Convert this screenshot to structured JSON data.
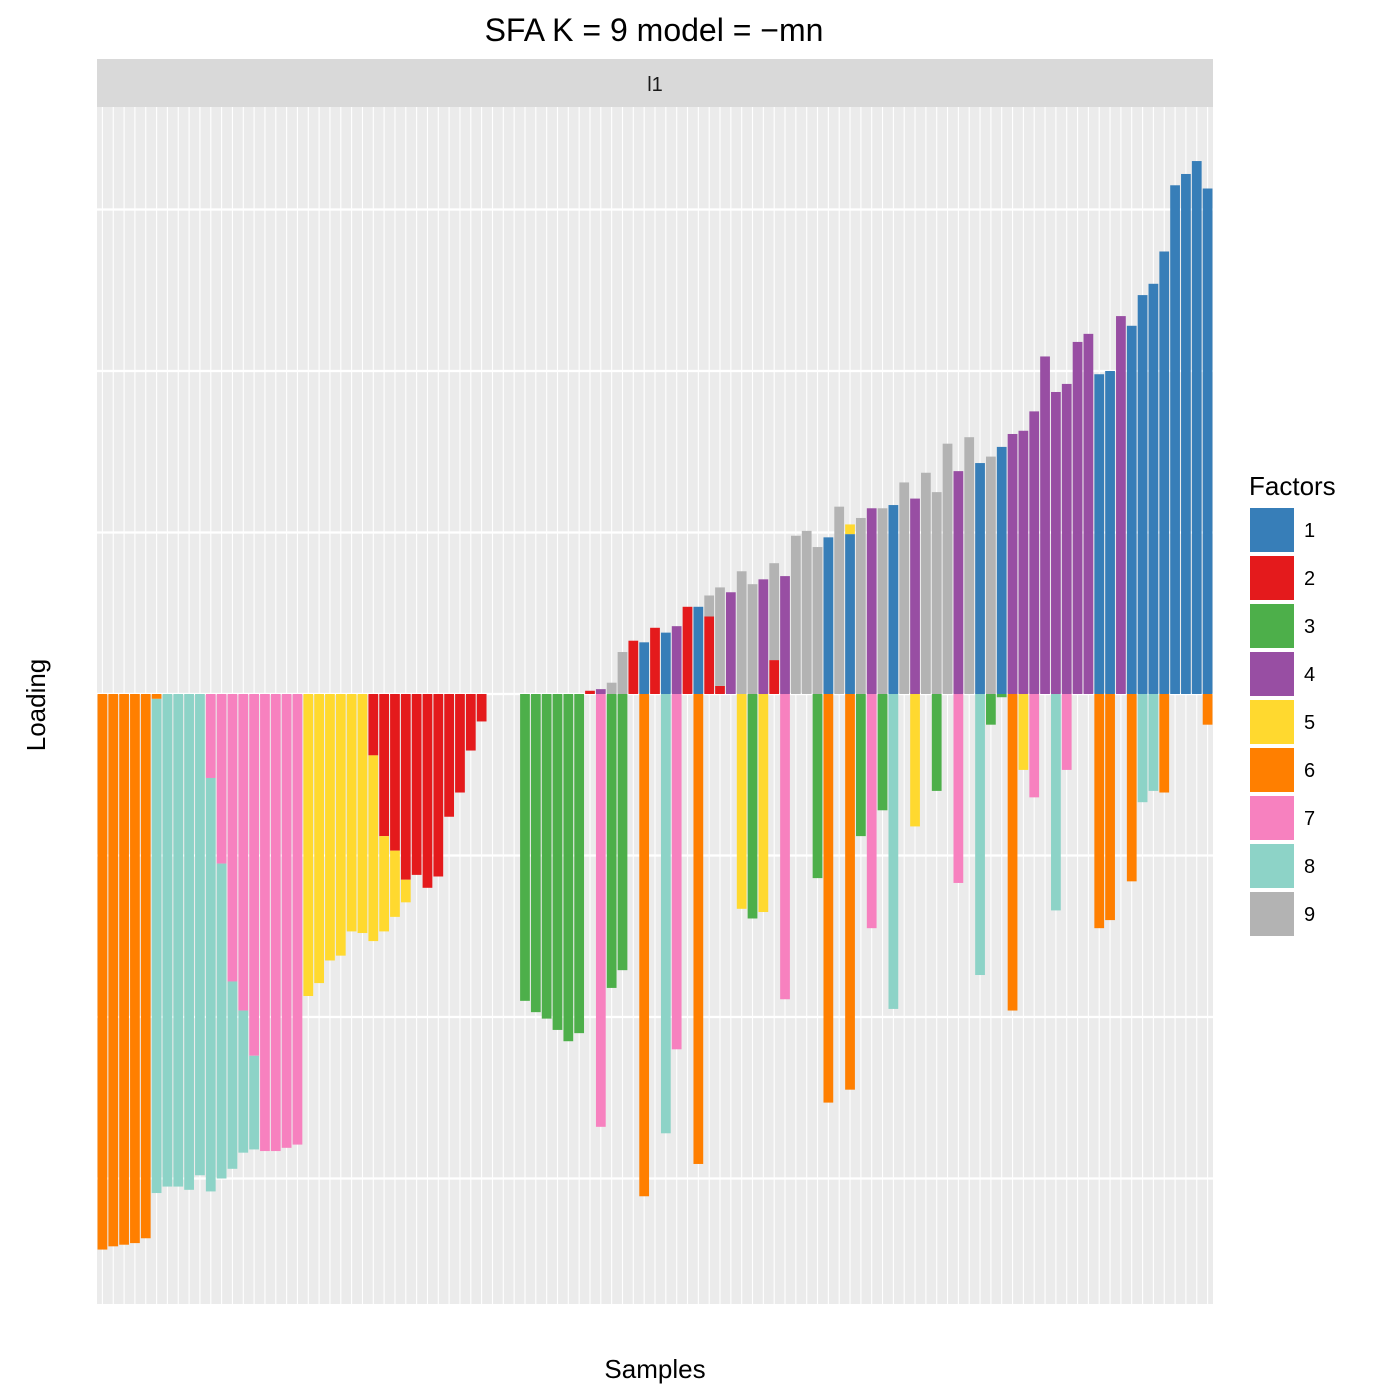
{
  "chart_data": {
    "type": "bar",
    "stacked": true,
    "title": "SFA K = 9 model =  −mn",
    "xlabel": "Samples",
    "ylabel": "Loading",
    "facet": "l1",
    "grid": true,
    "legend": {
      "title": "Factors",
      "placement": "right"
    },
    "ylim": [
      -3.8,
      3.5
    ],
    "factors": [
      {
        "name": "1",
        "color": "#377EB8"
      },
      {
        "name": "2",
        "color": "#E41A1C"
      },
      {
        "name": "3",
        "color": "#4DAF4A"
      },
      {
        "name": "4",
        "color": "#984EA3"
      },
      {
        "name": "5",
        "color": "#FFD92F"
      },
      {
        "name": "6",
        "color": "#FF7F00"
      },
      {
        "name": "7",
        "color": "#F781BF"
      },
      {
        "name": "8",
        "color": "#8DD3C7"
      },
      {
        "name": "9",
        "color": "#B3B3B3"
      }
    ],
    "samples": [
      [
        {
          "f": "6",
          "v": -3.44
        }
      ],
      [
        {
          "f": "6",
          "v": -3.42
        }
      ],
      [
        {
          "f": "6",
          "v": -3.41
        }
      ],
      [
        {
          "f": "6",
          "v": -3.4
        }
      ],
      [
        {
          "f": "6",
          "v": -3.37
        }
      ],
      [
        {
          "f": "6",
          "v": -0.03
        },
        {
          "f": "8",
          "v": -3.06
        }
      ],
      [
        {
          "f": "8",
          "v": -3.05
        }
      ],
      [
        {
          "f": "8",
          "v": -3.05
        }
      ],
      [
        {
          "f": "8",
          "v": -3.07
        }
      ],
      [
        {
          "f": "8",
          "v": -2.98
        }
      ],
      [
        {
          "f": "7",
          "v": -0.52
        },
        {
          "f": "8",
          "v": -2.56
        }
      ],
      [
        {
          "f": "7",
          "v": -1.05
        },
        {
          "f": "8",
          "v": -1.95
        }
      ],
      [
        {
          "f": "7",
          "v": -1.78
        },
        {
          "f": "8",
          "v": -1.16
        }
      ],
      [
        {
          "f": "7",
          "v": -1.96
        },
        {
          "f": "8",
          "v": -0.88
        }
      ],
      [
        {
          "f": "7",
          "v": -2.24
        },
        {
          "f": "8",
          "v": -0.58
        }
      ],
      [
        {
          "f": "7",
          "v": -2.83
        }
      ],
      [
        {
          "f": "7",
          "v": -2.83
        }
      ],
      [
        {
          "f": "7",
          "v": -2.81
        }
      ],
      [
        {
          "f": "7",
          "v": -2.79
        }
      ],
      [
        {
          "f": "5",
          "v": -1.87
        }
      ],
      [
        {
          "f": "5",
          "v": -1.79
        }
      ],
      [
        {
          "f": "5",
          "v": -1.65
        }
      ],
      [
        {
          "f": "5",
          "v": -1.62
        }
      ],
      [
        {
          "f": "5",
          "v": -1.47
        }
      ],
      [
        {
          "f": "5",
          "v": -1.48
        }
      ],
      [
        {
          "f": "2",
          "v": -0.38
        },
        {
          "f": "5",
          "v": -1.15
        }
      ],
      [
        {
          "f": "2",
          "v": -0.88
        },
        {
          "f": "5",
          "v": -0.59
        }
      ],
      [
        {
          "f": "2",
          "v": -0.97
        },
        {
          "f": "5",
          "v": -0.41
        }
      ],
      [
        {
          "f": "2",
          "v": -1.15
        },
        {
          "f": "5",
          "v": -0.14
        }
      ],
      [
        {
          "f": "2",
          "v": -1.12
        }
      ],
      [
        {
          "f": "2",
          "v": -1.2
        }
      ],
      [
        {
          "f": "2",
          "v": -1.13
        }
      ],
      [
        {
          "f": "2",
          "v": -0.76
        }
      ],
      [
        {
          "f": "2",
          "v": -0.61
        }
      ],
      [
        {
          "f": "2",
          "v": -0.35
        }
      ],
      [
        {
          "f": "2",
          "v": -0.17
        }
      ],
      [],
      [],
      [],
      [
        {
          "f": "3",
          "v": -1.9
        }
      ],
      [
        {
          "f": "3",
          "v": -1.97
        }
      ],
      [
        {
          "f": "3",
          "v": -2.01
        }
      ],
      [
        {
          "f": "3",
          "v": -2.08
        }
      ],
      [
        {
          "f": "3",
          "v": -2.15
        }
      ],
      [
        {
          "f": "3",
          "v": -2.1
        }
      ],
      [
        {
          "f": "2",
          "v": 0.02
        }
      ],
      [
        {
          "f": "4",
          "v": 0.03
        },
        {
          "f": "7",
          "v": -2.68
        }
      ],
      [
        {
          "f": "9",
          "v": 0.07
        },
        {
          "f": "3",
          "v": -1.82
        }
      ],
      [
        {
          "f": "9",
          "v": 0.26
        },
        {
          "f": "3",
          "v": -1.71
        }
      ],
      [
        {
          "f": "2",
          "v": 0.33
        }
      ],
      [
        {
          "f": "1",
          "v": 0.32
        },
        {
          "f": "6",
          "v": -3.11
        }
      ],
      [
        {
          "f": "2",
          "v": 0.41
        }
      ],
      [
        {
          "f": "1",
          "v": 0.38
        },
        {
          "f": "8",
          "v": -2.72
        }
      ],
      [
        {
          "f": "4",
          "v": 0.42
        },
        {
          "f": "7",
          "v": -2.2
        }
      ],
      [
        {
          "f": "2",
          "v": 0.54
        }
      ],
      [
        {
          "f": "1",
          "v": 0.54
        },
        {
          "f": "6",
          "v": -2.91
        }
      ],
      [
        {
          "f": "2",
          "v": 0.48
        },
        {
          "f": "9",
          "v": 0.13
        }
      ],
      [
        {
          "f": "2",
          "v": 0.05
        },
        {
          "f": "9",
          "v": 0.61
        }
      ],
      [
        {
          "f": "4",
          "v": 0.63
        }
      ],
      [
        {
          "f": "9",
          "v": 0.76
        },
        {
          "f": "5",
          "v": -1.33
        }
      ],
      [
        {
          "f": "9",
          "v": 0.68
        },
        {
          "f": "3",
          "v": -1.39
        }
      ],
      [
        {
          "f": "4",
          "v": 0.71
        },
        {
          "f": "5",
          "v": -1.35
        }
      ],
      [
        {
          "f": "2",
          "v": 0.21
        },
        {
          "f": "9",
          "v": 0.6
        }
      ],
      [
        {
          "f": "4",
          "v": 0.73
        },
        {
          "f": "7",
          "v": -1.89
        }
      ],
      [
        {
          "f": "9",
          "v": 0.98
        }
      ],
      [
        {
          "f": "9",
          "v": 1.01
        }
      ],
      [
        {
          "f": "9",
          "v": 0.91
        },
        {
          "f": "3",
          "v": -1.14
        }
      ],
      [
        {
          "f": "1",
          "v": 0.97
        },
        {
          "f": "6",
          "v": -2.53
        }
      ],
      [
        {
          "f": "9",
          "v": 1.16
        }
      ],
      [
        {
          "f": "1",
          "v": 0.99
        },
        {
          "f": "5",
          "v": 0.06
        },
        {
          "f": "6",
          "v": -2.45
        }
      ],
      [
        {
          "f": "9",
          "v": 1.09
        },
        {
          "f": "3",
          "v": -0.88
        }
      ],
      [
        {
          "f": "4",
          "v": 1.15
        },
        {
          "f": "7",
          "v": -1.45
        }
      ],
      [
        {
          "f": "9",
          "v": 1.15
        },
        {
          "f": "3",
          "v": -0.72
        }
      ],
      [
        {
          "f": "1",
          "v": 1.17
        },
        {
          "f": "8",
          "v": -1.95
        }
      ],
      [
        {
          "f": "9",
          "v": 1.31
        }
      ],
      [
        {
          "f": "4",
          "v": 1.21
        },
        {
          "f": "5",
          "v": -0.82
        }
      ],
      [
        {
          "f": "9",
          "v": 1.37
        }
      ],
      [
        {
          "f": "9",
          "v": 1.25
        },
        {
          "f": "3",
          "v": -0.6
        }
      ],
      [
        {
          "f": "9",
          "v": 1.55
        }
      ],
      [
        {
          "f": "4",
          "v": 1.38
        },
        {
          "f": "7",
          "v": -1.17
        }
      ],
      [
        {
          "f": "9",
          "v": 1.59
        }
      ],
      [
        {
          "f": "1",
          "v": 1.43
        },
        {
          "f": "8",
          "v": -1.74
        }
      ],
      [
        {
          "f": "9",
          "v": 1.47
        },
        {
          "f": "3",
          "v": -0.19
        }
      ],
      [
        {
          "f": "1",
          "v": 1.53
        },
        {
          "f": "3",
          "v": -0.02
        }
      ],
      [
        {
          "f": "4",
          "v": 1.61
        },
        {
          "f": "6",
          "v": -1.96
        }
      ],
      [
        {
          "f": "4",
          "v": 1.63
        },
        {
          "f": "5",
          "v": -0.47
        }
      ],
      [
        {
          "f": "4",
          "v": 1.75
        },
        {
          "f": "7",
          "v": -0.64
        }
      ],
      [
        {
          "f": "4",
          "v": 2.09
        }
      ],
      [
        {
          "f": "4",
          "v": 1.87
        },
        {
          "f": "8",
          "v": -1.34
        }
      ],
      [
        {
          "f": "4",
          "v": 1.92
        },
        {
          "f": "7",
          "v": -0.47
        }
      ],
      [
        {
          "f": "4",
          "v": 2.18
        }
      ],
      [
        {
          "f": "4",
          "v": 2.23
        }
      ],
      [
        {
          "f": "1",
          "v": 1.98
        },
        {
          "f": "6",
          "v": -1.45
        }
      ],
      [
        {
          "f": "1",
          "v": 2.0
        },
        {
          "f": "6",
          "v": -1.4
        }
      ],
      [
        {
          "f": "4",
          "v": 2.34
        }
      ],
      [
        {
          "f": "1",
          "v": 2.28
        },
        {
          "f": "6",
          "v": -1.16
        }
      ],
      [
        {
          "f": "1",
          "v": 2.47
        },
        {
          "f": "8",
          "v": -0.67
        }
      ],
      [
        {
          "f": "1",
          "v": 2.54
        },
        {
          "f": "8",
          "v": -0.6
        }
      ],
      [
        {
          "f": "1",
          "v": 2.74
        },
        {
          "f": "6",
          "v": -0.61
        }
      ],
      [
        {
          "f": "1",
          "v": 3.15
        }
      ],
      [
        {
          "f": "1",
          "v": 3.22
        }
      ],
      [
        {
          "f": "1",
          "v": 3.3
        }
      ],
      [
        {
          "f": "1",
          "v": 3.13
        },
        {
          "f": "6",
          "v": -0.19
        }
      ]
    ]
  }
}
